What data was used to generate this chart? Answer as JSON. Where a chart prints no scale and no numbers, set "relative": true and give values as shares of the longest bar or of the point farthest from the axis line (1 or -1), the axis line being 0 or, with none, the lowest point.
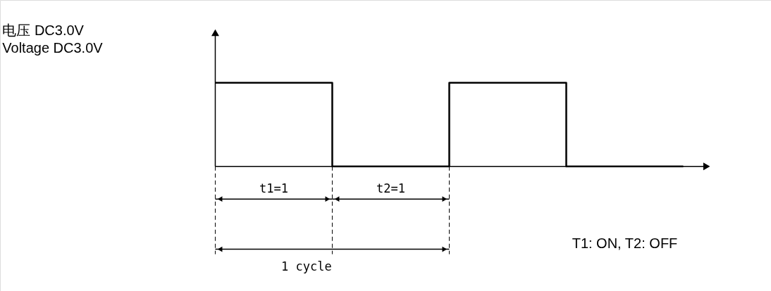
{
  "chart_data": {
    "type": "step",
    "relative": true,
    "categories": [
      null,
      null,
      null,
      null,
      null
    ],
    "series": [
      {
        "color": "#000000",
        "values": [
          1,
          0,
          1,
          0,
          0
        ]
      }
    ],
    "annotations": [
      "电压 DC3.0V",
      "Voltage DC3.0V",
      "t1=1",
      "t2=1",
      "1 cycle",
      "T1: ON,   T2: OFF"
    ]
  }
}
